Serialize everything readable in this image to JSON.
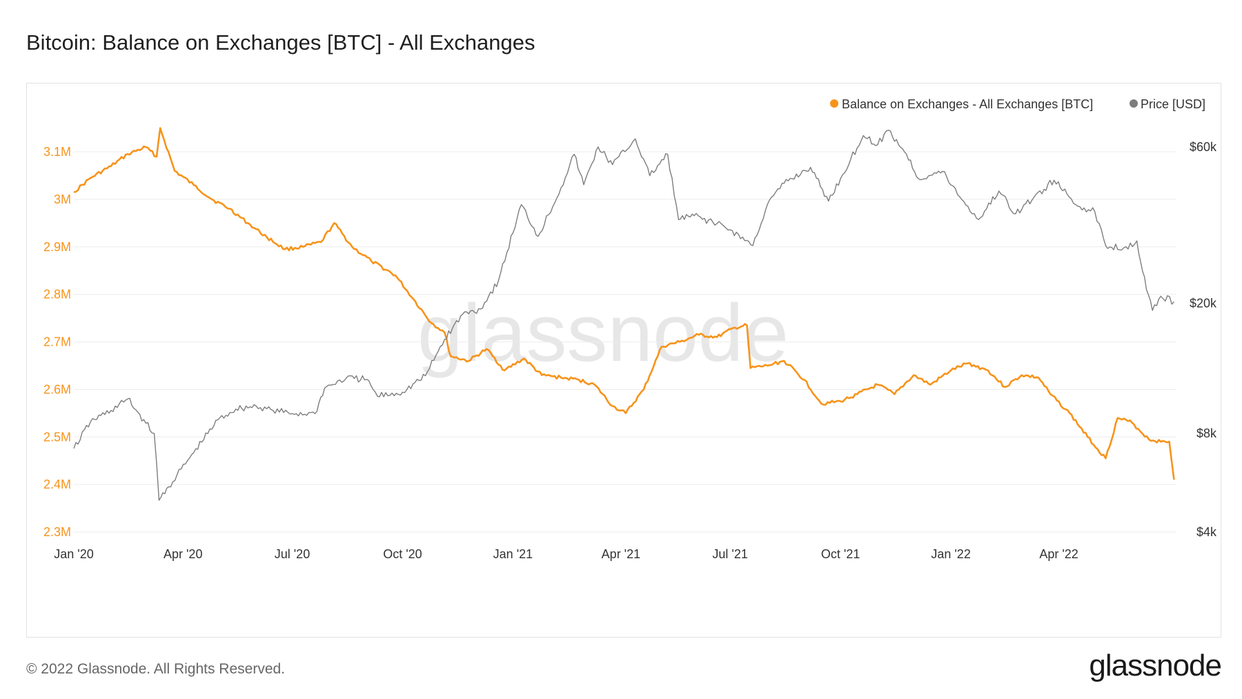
{
  "title": "Bitcoin: Balance on Exchanges [BTC] - All Exchanges",
  "footer": "© 2022 Glassnode. All Rights Reserved.",
  "logo": "glassnode",
  "watermark": "glassnode",
  "colors": {
    "balance": "#f7931a",
    "price": "#7d7d7d",
    "grid": "#ececec",
    "watermark": "#e7e7e7"
  },
  "chart_data": {
    "type": "line",
    "title": "Bitcoin: Balance on Exchanges [BTC] - All Exchanges",
    "legend": {
      "placement": "top-right",
      "entries": [
        "Balance on Exchanges - All Exchanges [BTC]",
        "Price [USD]"
      ]
    },
    "grid": true,
    "x_ticks": [
      "Jan '20",
      "Apr '20",
      "Jul '20",
      "Oct '20",
      "Jan '21",
      "Apr '21",
      "Jul '21",
      "Oct '21",
      "Jan '22",
      "Apr '22"
    ],
    "left_axis": {
      "label": "",
      "ticks": [
        "3.1M",
        "3M",
        "2.9M",
        "2.8M",
        "2.7M",
        "2.6M",
        "2.5M",
        "2.4M",
        "2.3M"
      ],
      "range": [
        2300000,
        3160000
      ]
    },
    "right_axis": {
      "label": "",
      "scale": "log",
      "ticks": [
        "$60k",
        "$20k",
        "$8k",
        "$4k"
      ],
      "range": [
        4000,
        66000
      ]
    },
    "series": [
      {
        "name": "Balance on Exchanges - All Exchanges [BTC]",
        "axis": "left",
        "points": [
          [
            "2020-01-01",
            3015000
          ],
          [
            "2020-01-15",
            3045000
          ],
          [
            "2020-02-01",
            3070000
          ],
          [
            "2020-02-15",
            3095000
          ],
          [
            "2020-03-01",
            3110000
          ],
          [
            "2020-03-10",
            3090000
          ],
          [
            "2020-03-13",
            3150000
          ],
          [
            "2020-03-25",
            3060000
          ],
          [
            "2020-04-10",
            3030000
          ],
          [
            "2020-04-25",
            3000000
          ],
          [
            "2020-05-10",
            2980000
          ],
          [
            "2020-05-25",
            2950000
          ],
          [
            "2020-06-10",
            2920000
          ],
          [
            "2020-06-25",
            2895000
          ],
          [
            "2020-07-10",
            2900000
          ],
          [
            "2020-07-25",
            2910000
          ],
          [
            "2020-08-05",
            2950000
          ],
          [
            "2020-08-20",
            2900000
          ],
          [
            "2020-09-05",
            2870000
          ],
          [
            "2020-09-25",
            2840000
          ],
          [
            "2020-10-10",
            2790000
          ],
          [
            "2020-10-25",
            2740000
          ],
          [
            "2020-11-05",
            2720000
          ],
          [
            "2020-11-10",
            2670000
          ],
          [
            "2020-11-25",
            2660000
          ],
          [
            "2020-12-10",
            2685000
          ],
          [
            "2020-12-25",
            2640000
          ],
          [
            "2021-01-10",
            2665000
          ],
          [
            "2021-01-25",
            2630000
          ],
          [
            "2021-02-10",
            2625000
          ],
          [
            "2021-02-25",
            2620000
          ],
          [
            "2021-03-10",
            2610000
          ],
          [
            "2021-03-25",
            2565000
          ],
          [
            "2021-04-05",
            2550000
          ],
          [
            "2021-04-20",
            2600000
          ],
          [
            "2021-05-05",
            2690000
          ],
          [
            "2021-05-20",
            2700000
          ],
          [
            "2021-06-05",
            2715000
          ],
          [
            "2021-06-20",
            2710000
          ],
          [
            "2021-07-05",
            2730000
          ],
          [
            "2021-07-15",
            2735000
          ],
          [
            "2021-07-18",
            2645000
          ],
          [
            "2021-08-01",
            2650000
          ],
          [
            "2021-08-15",
            2660000
          ],
          [
            "2021-09-01",
            2620000
          ],
          [
            "2021-09-15",
            2570000
          ],
          [
            "2021-10-01",
            2575000
          ],
          [
            "2021-10-15",
            2590000
          ],
          [
            "2021-11-01",
            2610000
          ],
          [
            "2021-11-15",
            2590000
          ],
          [
            "2021-12-01",
            2630000
          ],
          [
            "2021-12-15",
            2610000
          ],
          [
            "2022-01-01",
            2640000
          ],
          [
            "2022-01-15",
            2655000
          ],
          [
            "2022-02-01",
            2640000
          ],
          [
            "2022-02-15",
            2605000
          ],
          [
            "2022-03-01",
            2630000
          ],
          [
            "2022-03-15",
            2625000
          ],
          [
            "2022-03-25",
            2590000
          ],
          [
            "2022-04-10",
            2550000
          ],
          [
            "2022-04-25",
            2500000
          ],
          [
            "2022-05-10",
            2455000
          ],
          [
            "2022-05-20",
            2540000
          ],
          [
            "2022-06-01",
            2530000
          ],
          [
            "2022-06-15",
            2495000
          ],
          [
            "2022-06-25",
            2490000
          ],
          [
            "2022-07-02",
            2490000
          ],
          [
            "2022-07-06",
            2410000
          ]
        ]
      },
      {
        "name": "Price [USD]",
        "axis": "right",
        "points": [
          [
            "2020-01-01",
            7200
          ],
          [
            "2020-01-15",
            8700
          ],
          [
            "2020-02-01",
            9400
          ],
          [
            "2020-02-15",
            10200
          ],
          [
            "2020-03-01",
            8600
          ],
          [
            "2020-03-08",
            8000
          ],
          [
            "2020-03-12",
            5000
          ],
          [
            "2020-03-20",
            5500
          ],
          [
            "2020-04-10",
            7000
          ],
          [
            "2020-04-30",
            8800
          ],
          [
            "2020-05-15",
            9500
          ],
          [
            "2020-06-01",
            9700
          ],
          [
            "2020-06-15",
            9400
          ],
          [
            "2020-07-01",
            9200
          ],
          [
            "2020-07-20",
            9200
          ],
          [
            "2020-07-28",
            11000
          ],
          [
            "2020-08-15",
            11800
          ],
          [
            "2020-09-01",
            11700
          ],
          [
            "2020-09-10",
            10400
          ],
          [
            "2020-10-01",
            10700
          ],
          [
            "2020-10-20",
            12000
          ],
          [
            "2020-11-05",
            15500
          ],
          [
            "2020-11-20",
            18500
          ],
          [
            "2020-12-05",
            19200
          ],
          [
            "2020-12-20",
            23500
          ],
          [
            "2021-01-08",
            40000
          ],
          [
            "2021-01-22",
            32000
          ],
          [
            "2021-02-10",
            45000
          ],
          [
            "2021-02-21",
            57000
          ],
          [
            "2021-03-01",
            46000
          ],
          [
            "2021-03-13",
            60000
          ],
          [
            "2021-03-25",
            53000
          ],
          [
            "2021-04-13",
            63500
          ],
          [
            "2021-04-25",
            49000
          ],
          [
            "2021-05-10",
            57000
          ],
          [
            "2021-05-19",
            36000
          ],
          [
            "2021-06-01",
            37000
          ],
          [
            "2021-06-20",
            35000
          ],
          [
            "2021-07-01",
            33500
          ],
          [
            "2021-07-20",
            30000
          ],
          [
            "2021-08-01",
            40000
          ],
          [
            "2021-08-15",
            46500
          ],
          [
            "2021-09-06",
            52000
          ],
          [
            "2021-09-21",
            41000
          ],
          [
            "2021-10-01",
            48000
          ],
          [
            "2021-10-20",
            65000
          ],
          [
            "2021-11-01",
            61000
          ],
          [
            "2021-11-10",
            67500
          ],
          [
            "2021-11-25",
            57000
          ],
          [
            "2021-12-05",
            48000
          ],
          [
            "2021-12-25",
            50500
          ],
          [
            "2022-01-10",
            41500
          ],
          [
            "2022-01-24",
            36000
          ],
          [
            "2022-02-10",
            44000
          ],
          [
            "2022-02-24",
            37500
          ],
          [
            "2022-03-28",
            47500
          ],
          [
            "2022-04-15",
            40000
          ],
          [
            "2022-05-01",
            38000
          ],
          [
            "2022-05-10",
            30000
          ],
          [
            "2022-05-25",
            29500
          ],
          [
            "2022-06-05",
            31000
          ],
          [
            "2022-06-13",
            22000
          ],
          [
            "2022-06-18",
            19000
          ],
          [
            "2022-06-25",
            21000
          ],
          [
            "2022-07-06",
            20200
          ]
        ]
      }
    ]
  }
}
